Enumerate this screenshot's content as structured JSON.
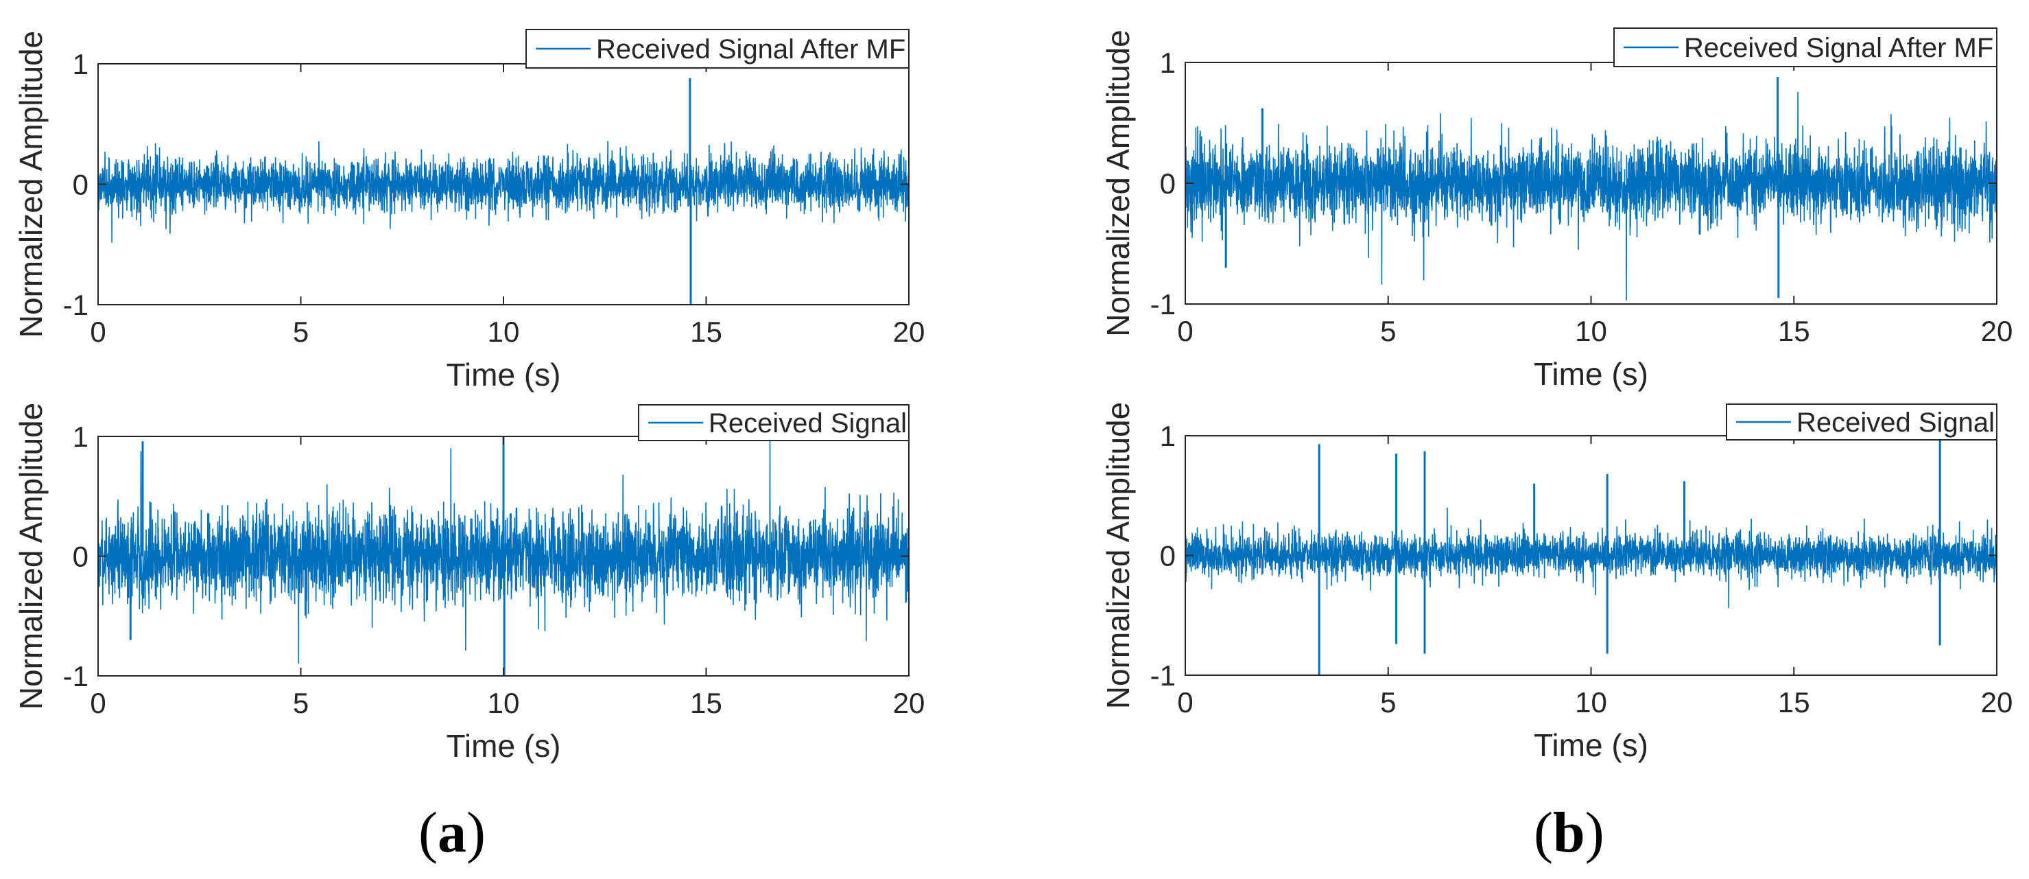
{
  "panel_labels": {
    "a": "a",
    "b": "b"
  },
  "series_color": "#0072BD",
  "chart_data": [
    {
      "id": "a-top",
      "type": "line",
      "title": "",
      "xlabel": "Time (s)",
      "ylabel": "Normalized Amplitude",
      "xlim": [
        0,
        20
      ],
      "ylim": [
        -1,
        1
      ],
      "xticks": [
        0,
        5,
        10,
        15,
        20
      ],
      "yticks": [
        -1,
        0,
        1
      ],
      "grid": false,
      "legend_position": "top-right-outside",
      "series": [
        {
          "name": "Received Signal After MF",
          "noise_std": 0.11,
          "spikes": [
            {
              "x": 14.6,
              "y": 0.88
            },
            {
              "x": 14.62,
              "y": -1.0
            }
          ],
          "samples": 4000
        }
      ]
    },
    {
      "id": "a-bottom",
      "type": "line",
      "title": "",
      "xlabel": "Time (s)",
      "ylabel": "Normalized Amplitude",
      "xlim": [
        0,
        20
      ],
      "ylim": [
        -1,
        1
      ],
      "xticks": [
        0,
        5,
        10,
        15,
        20
      ],
      "yticks": [
        -1,
        0,
        1
      ],
      "grid": false,
      "legend_position": "top-right-outside",
      "series": [
        {
          "name": "Received Signal",
          "noise_std": 0.18,
          "spikes": [
            {
              "x": 10.0,
              "y": 1.0
            },
            {
              "x": 10.02,
              "y": -1.0
            },
            {
              "x": 1.1,
              "y": 0.96
            },
            {
              "x": 0.8,
              "y": -0.7
            }
          ],
          "samples": 4000
        }
      ]
    },
    {
      "id": "b-top",
      "type": "line",
      "title": "",
      "xlabel": "Time (s)",
      "ylabel": "Normalized Amplitude",
      "xlim": [
        0,
        20
      ],
      "ylim": [
        -1,
        1
      ],
      "xticks": [
        0,
        5,
        10,
        15,
        20
      ],
      "yticks": [
        -1,
        0,
        1
      ],
      "grid": false,
      "legend_position": "top-right-outside",
      "series": [
        {
          "name": "Received Signal After MF",
          "noise_std": 0.16,
          "spikes": [
            {
              "x": 14.6,
              "y": 0.88
            },
            {
              "x": 14.62,
              "y": -0.95
            },
            {
              "x": 1.0,
              "y": -0.7
            },
            {
              "x": 1.9,
              "y": 0.62
            }
          ],
          "samples": 4000
        }
      ]
    },
    {
      "id": "b-bottom",
      "type": "line",
      "title": "",
      "xlabel": "Time (s)",
      "ylabel": "Normalized Amplitude",
      "xlim": [
        0,
        20
      ],
      "ylim": [
        -1,
        1
      ],
      "xticks": [
        0,
        5,
        10,
        15,
        20
      ],
      "yticks": [
        -1,
        0,
        1
      ],
      "grid": false,
      "legend_position": "top-right-outside",
      "series": [
        {
          "name": "Received Signal",
          "noise_std": 0.09,
          "spikes": [
            {
              "x": 3.3,
              "y": 0.93
            },
            {
              "x": 3.3,
              "y": -1.0
            },
            {
              "x": 5.2,
              "y": 0.85
            },
            {
              "x": 5.2,
              "y": -0.74
            },
            {
              "x": 5.9,
              "y": 0.87
            },
            {
              "x": 5.9,
              "y": -0.82
            },
            {
              "x": 10.4,
              "y": 0.68
            },
            {
              "x": 10.4,
              "y": -0.82
            },
            {
              "x": 18.6,
              "y": 1.0
            },
            {
              "x": 18.6,
              "y": -0.75
            },
            {
              "x": 8.6,
              "y": 0.6
            },
            {
              "x": 12.3,
              "y": 0.62
            }
          ],
          "samples": 4000
        }
      ]
    }
  ]
}
